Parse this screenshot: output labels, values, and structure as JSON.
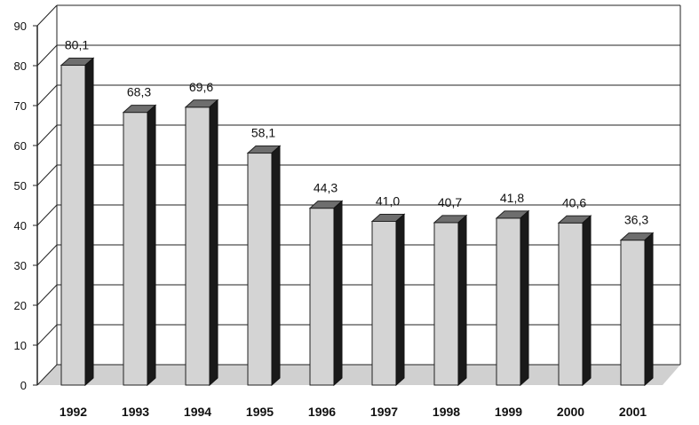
{
  "chart_data": {
    "type": "bar",
    "title": "",
    "xlabel": "",
    "ylabel": "",
    "categories": [
      "1992",
      "1993",
      "1994",
      "1995",
      "1996",
      "1997",
      "1998",
      "1999",
      "2000",
      "2001"
    ],
    "values": [
      80.1,
      68.3,
      69.6,
      58.1,
      44.3,
      41.0,
      40.7,
      41.8,
      40.6,
      36.3
    ],
    "value_labels": [
      "80,1",
      "68,3",
      "69,6",
      "58,1",
      "44,3",
      "41,0",
      "40,7",
      "41,8",
      "40,6",
      "36,3"
    ],
    "ylim": [
      0,
      90
    ],
    "yticks": [
      "0",
      "10",
      "20",
      "30",
      "40",
      "50",
      "60",
      "70",
      "80",
      "90"
    ],
    "grid": true,
    "legend": "none",
    "colors": {
      "bar_front": "#d4d4d4",
      "bar_top": "#6e6e6e",
      "bar_side": "#1a1a1a",
      "floor": "#d0d0d0",
      "gridline": "#222222"
    }
  }
}
